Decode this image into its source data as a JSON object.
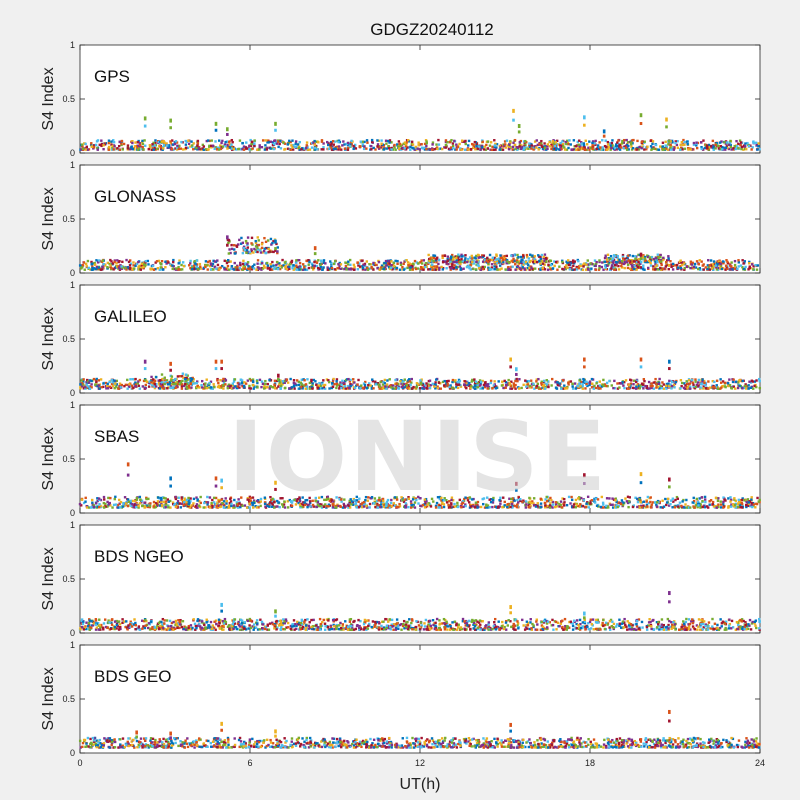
{
  "chart_data": {
    "type": "scatter",
    "title": "GDGZ20240112",
    "xlabel": "UT(h)",
    "ylabel": "S4 Index",
    "xlim": [
      0,
      24
    ],
    "ylim": [
      0,
      1
    ],
    "xticks": [
      "0",
      "6",
      "12",
      "18",
      "24"
    ],
    "yticks": [
      "0",
      "0.5",
      "1"
    ],
    "grid": false,
    "watermark": "IONISE",
    "colors": [
      "#0072BD",
      "#D95319",
      "#EDB120",
      "#7E2F8E",
      "#77AC30",
      "#4DBEEE",
      "#A2142F"
    ],
    "panels": [
      {
        "label": "GPS",
        "baseline_bands": [
          {
            "x_range": [
              0,
              24
            ],
            "s4_range": [
              0.03,
              0.12
            ]
          }
        ],
        "spikes": [
          {
            "x": 2.3,
            "y": 0.32
          },
          {
            "x": 3.2,
            "y": 0.3
          },
          {
            "x": 4.8,
            "y": 0.27
          },
          {
            "x": 5.2,
            "y": 0.22
          },
          {
            "x": 6.9,
            "y": 0.27
          },
          {
            "x": 15.3,
            "y": 0.39
          },
          {
            "x": 15.5,
            "y": 0.25
          },
          {
            "x": 17.8,
            "y": 0.33
          },
          {
            "x": 19.8,
            "y": 0.35
          },
          {
            "x": 20.7,
            "y": 0.31
          },
          {
            "x": 18.5,
            "y": 0.2
          }
        ]
      },
      {
        "label": "GLONASS",
        "baseline_bands": [
          {
            "x_range": [
              0,
              24
            ],
            "s4_range": [
              0.03,
              0.12
            ]
          },
          {
            "x_range": [
              5.2,
              7.0
            ],
            "s4_range": [
              0.18,
              0.33
            ]
          },
          {
            "x_range": [
              12.3,
              16.5
            ],
            "s4_range": [
              0.1,
              0.17
            ]
          },
          {
            "x_range": [
              18.5,
              20.8
            ],
            "s4_range": [
              0.1,
              0.17
            ]
          }
        ],
        "spikes": [
          {
            "x": 5.2,
            "y": 0.33
          },
          {
            "x": 6.9,
            "y": 0.29
          },
          {
            "x": 8.3,
            "y": 0.23
          },
          {
            "x": 19.8,
            "y": 0.17
          }
        ]
      },
      {
        "label": "GALILEO",
        "baseline_bands": [
          {
            "x_range": [
              0,
              24
            ],
            "s4_range": [
              0.04,
              0.13
            ]
          },
          {
            "x_range": [
              2.5,
              4.0
            ],
            "s4_range": [
              0.08,
              0.18
            ]
          }
        ],
        "spikes": [
          {
            "x": 2.3,
            "y": 0.29
          },
          {
            "x": 3.2,
            "y": 0.27
          },
          {
            "x": 4.8,
            "y": 0.29
          },
          {
            "x": 5.0,
            "y": 0.29
          },
          {
            "x": 15.2,
            "y": 0.31
          },
          {
            "x": 15.4,
            "y": 0.22
          },
          {
            "x": 17.8,
            "y": 0.31
          },
          {
            "x": 19.8,
            "y": 0.31
          },
          {
            "x": 20.8,
            "y": 0.29
          },
          {
            "x": 7.0,
            "y": 0.16
          }
        ]
      },
      {
        "label": "SBAS",
        "baseline_bands": [
          {
            "x_range": [
              0,
              24
            ],
            "s4_range": [
              0.05,
              0.15
            ]
          }
        ],
        "spikes": [
          {
            "x": 1.7,
            "y": 0.45
          },
          {
            "x": 3.2,
            "y": 0.32
          },
          {
            "x": 4.8,
            "y": 0.32
          },
          {
            "x": 5.0,
            "y": 0.3
          },
          {
            "x": 6.9,
            "y": 0.28
          },
          {
            "x": 15.4,
            "y": 0.27
          },
          {
            "x": 17.8,
            "y": 0.35
          },
          {
            "x": 19.8,
            "y": 0.36
          },
          {
            "x": 20.8,
            "y": 0.31
          }
        ]
      },
      {
        "label": "BDS NGEO",
        "baseline_bands": [
          {
            "x_range": [
              0,
              24
            ],
            "s4_range": [
              0.03,
              0.13
            ]
          }
        ],
        "spikes": [
          {
            "x": 5.0,
            "y": 0.26
          },
          {
            "x": 6.9,
            "y": 0.2
          },
          {
            "x": 15.2,
            "y": 0.24
          },
          {
            "x": 20.8,
            "y": 0.37
          },
          {
            "x": 17.8,
            "y": 0.18
          }
        ]
      },
      {
        "label": "BDS GEO",
        "baseline_bands": [
          {
            "x_range": [
              0,
              24
            ],
            "s4_range": [
              0.05,
              0.14
            ]
          }
        ],
        "spikes": [
          {
            "x": 2.0,
            "y": 0.19
          },
          {
            "x": 3.2,
            "y": 0.18
          },
          {
            "x": 5.0,
            "y": 0.27
          },
          {
            "x": 6.9,
            "y": 0.2
          },
          {
            "x": 15.2,
            "y": 0.26
          },
          {
            "x": 20.8,
            "y": 0.38
          }
        ]
      }
    ]
  }
}
